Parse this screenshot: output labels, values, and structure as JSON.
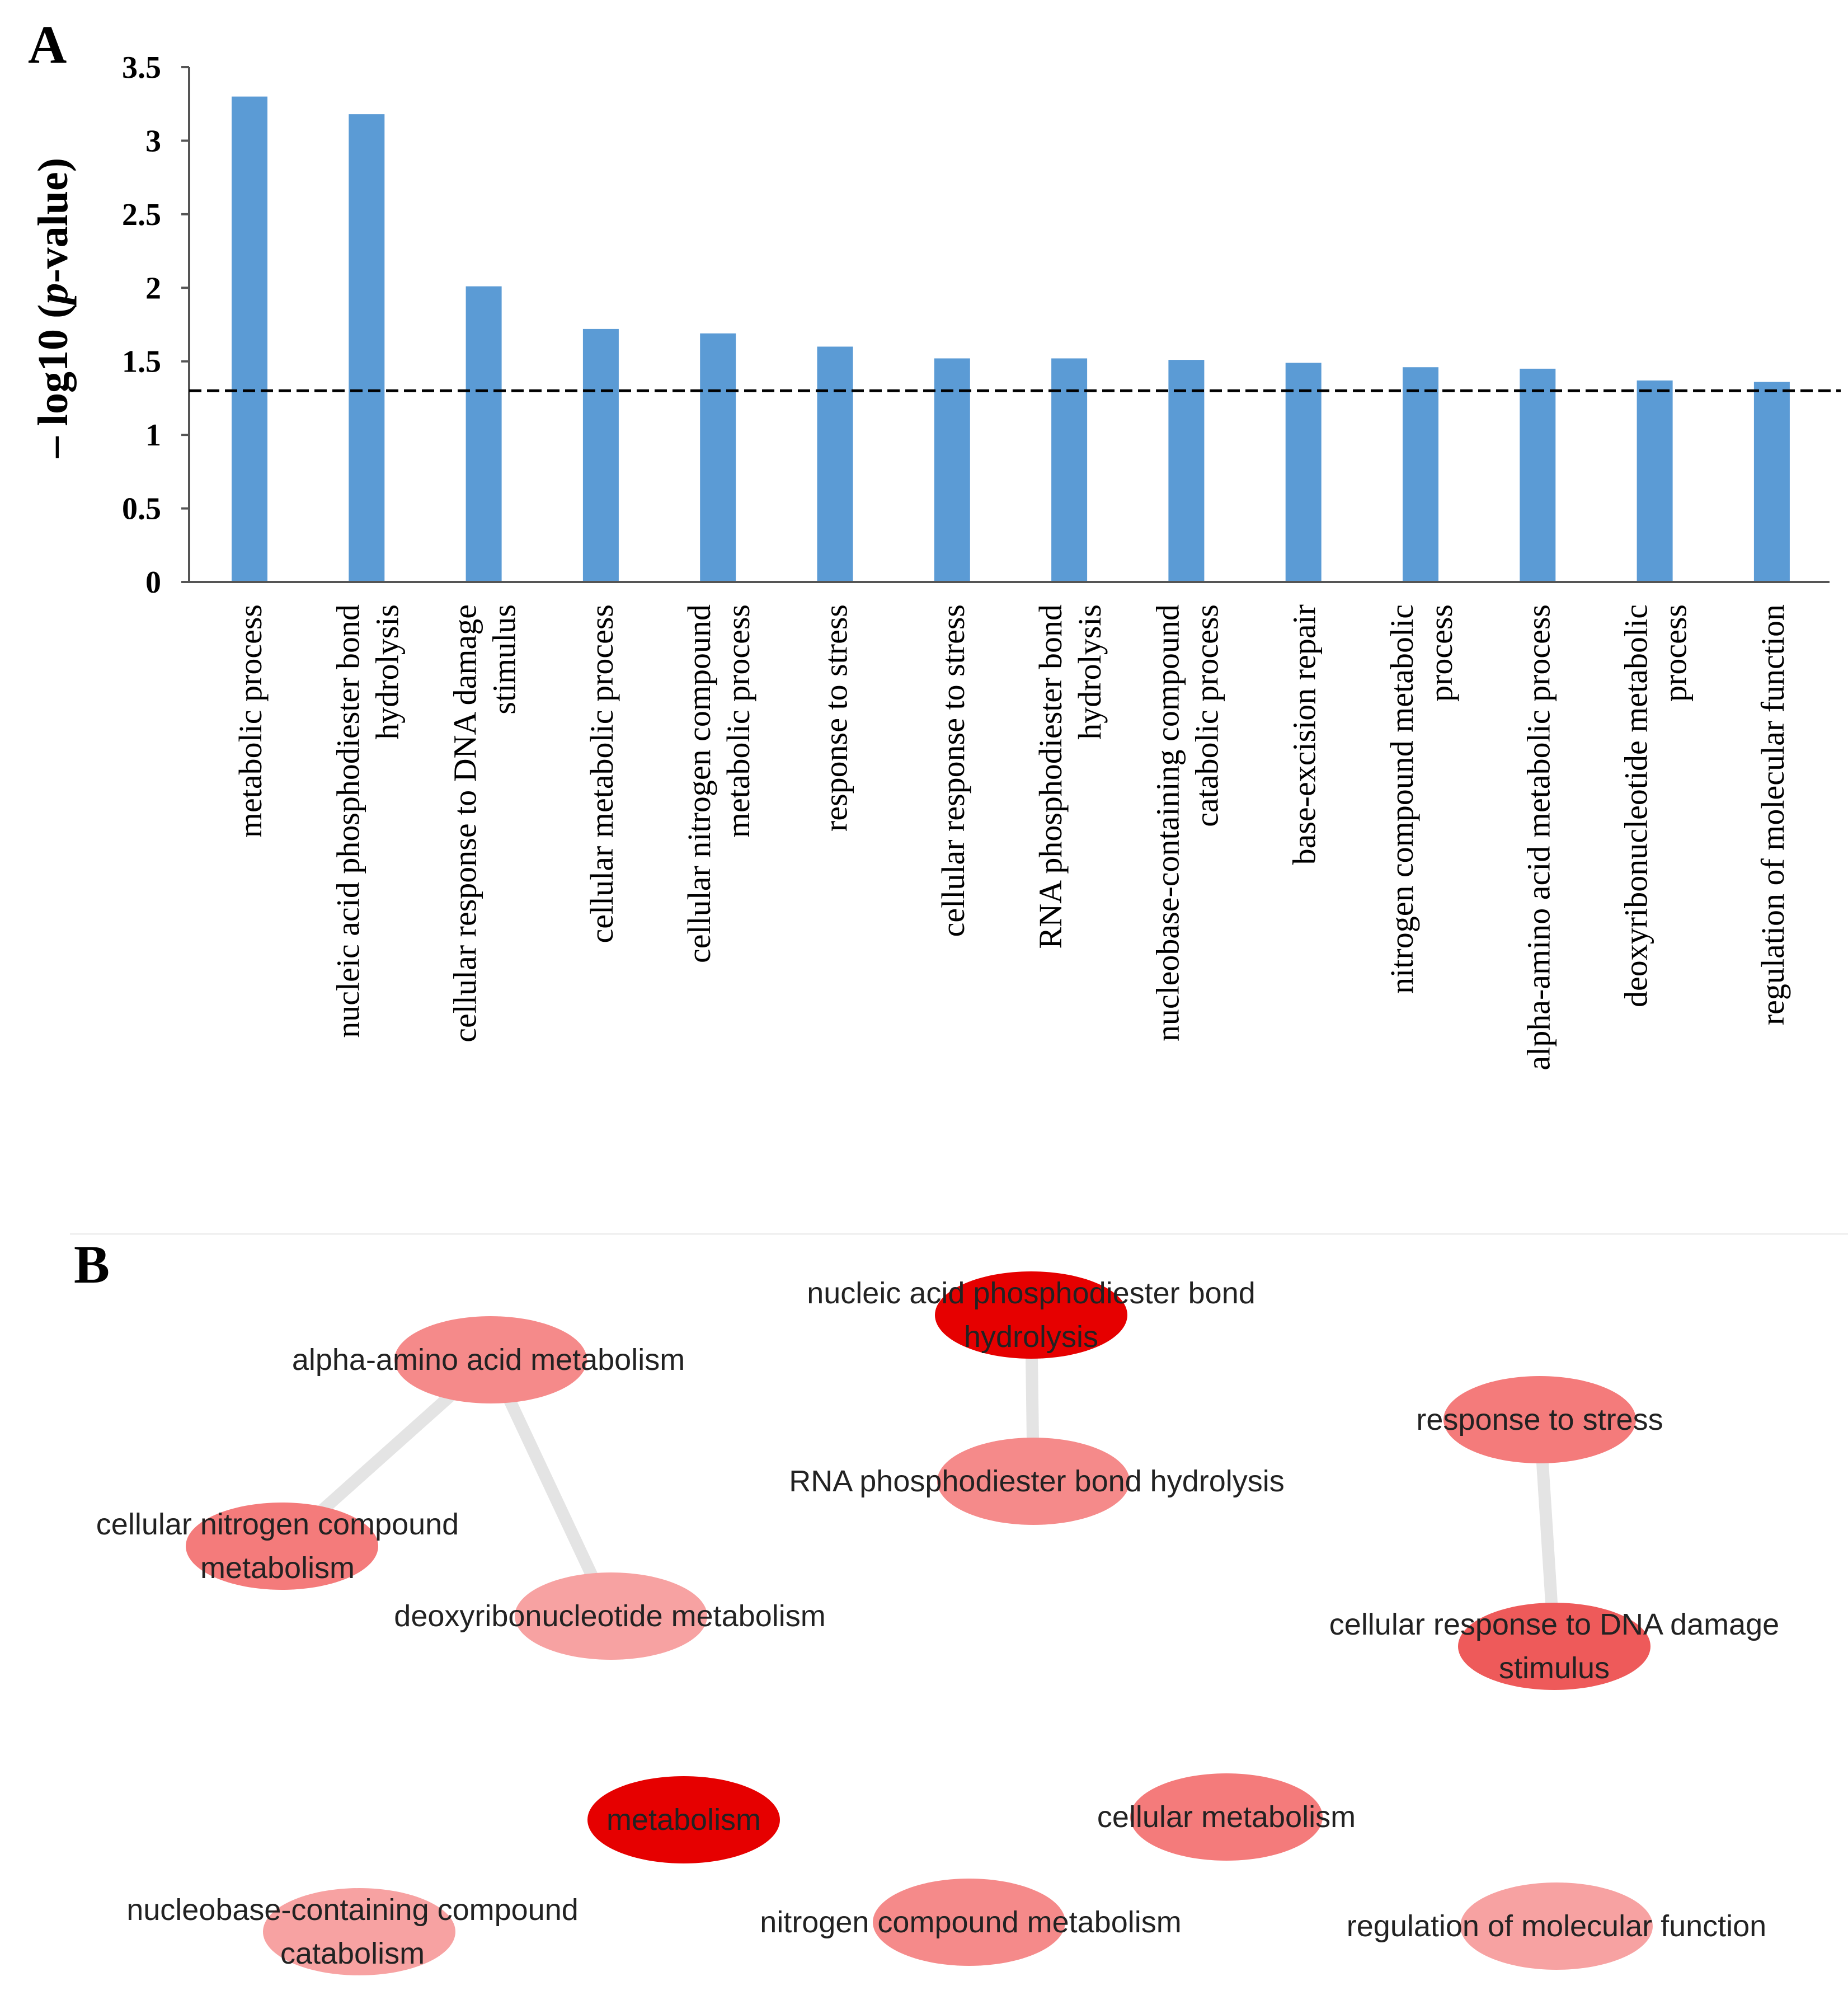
{
  "figure": {
    "panel_a_label": "A",
    "panel_b_label": "B"
  },
  "chart_data": [
    {
      "type": "bar",
      "panel": "A",
      "ylabel_prefix": "– log10 (",
      "ylabel_italic": "p",
      "ylabel_suffix": "-value)",
      "ylim": [
        0,
        3.5
      ],
      "yticks": [
        "0",
        "0.5",
        "1",
        "1.5",
        "2",
        "2.5",
        "3",
        "3.5"
      ],
      "bar_color": "#5b9bd5",
      "threshold": 1.3,
      "threshold_style": "dashed",
      "categories": [
        [
          "metabolic process"
        ],
        [
          "nucleic acid phosphodiester bond",
          "hydrolysis"
        ],
        [
          "cellular response to DNA damage",
          "stimulus"
        ],
        [
          "cellular metabolic process"
        ],
        [
          "cellular nitrogen compound",
          "metabolic process"
        ],
        [
          "response to stress"
        ],
        [
          "cellular response to stress"
        ],
        [
          "RNA phosphodiester bond",
          "hydrolysis"
        ],
        [
          "nucleobase-containing compound",
          "catabolic process"
        ],
        [
          "base-excision repair"
        ],
        [
          "nitrogen compound metabolic",
          "process"
        ],
        [
          "alpha-amino acid metabolic process"
        ],
        [
          "deoxyribonucleotide metabolic",
          "process"
        ],
        [
          "regulation of molecular function"
        ]
      ],
      "values": [
        3.3,
        3.18,
        2.01,
        1.72,
        1.69,
        1.6,
        1.52,
        1.52,
        1.51,
        1.49,
        1.46,
        1.45,
        1.37,
        1.36
      ]
    },
    {
      "type": "network",
      "panel": "B",
      "nodes": [
        {
          "id": "nucleic",
          "lines": [
            "nucleic acid phosphodiester bond",
            "hydrolysis"
          ],
          "color": "#e60000"
        },
        {
          "id": "alpha",
          "lines": [
            "alpha-amino acid metabolism"
          ],
          "color": "#f58a8a"
        },
        {
          "id": "rna",
          "lines": [
            "RNA phosphodiester bond hydrolysis"
          ],
          "color": "#f58a8a"
        },
        {
          "id": "stress",
          "lines": [
            "response to stress"
          ],
          "color": "#f47b7b"
        },
        {
          "id": "cnitro",
          "lines": [
            "cellular nitrogen compound",
            "metabolism"
          ],
          "color": "#f47b7b"
        },
        {
          "id": "deoxy",
          "lines": [
            "deoxyribonucleotide metabolism"
          ],
          "color": "#f7a2a2"
        },
        {
          "id": "dna",
          "lines": [
            "cellular response to DNA damage",
            "stimulus"
          ],
          "color": "#ee5a5a"
        },
        {
          "id": "metab",
          "lines": [
            "metabolism"
          ],
          "color": "#e60000"
        },
        {
          "id": "cellmet",
          "lines": [
            "cellular metabolism"
          ],
          "color": "#f47b7b"
        },
        {
          "id": "nucleobase",
          "lines": [
            "nucleobase-containing compound",
            "catabolism"
          ],
          "color": "#f7a2a2"
        },
        {
          "id": "nitro",
          "lines": [
            "nitrogen compound metabolism"
          ],
          "color": "#f58a8a"
        },
        {
          "id": "regmol",
          "lines": [
            "regulation of molecular function"
          ],
          "color": "#f7a2a2"
        }
      ],
      "edges": [
        [
          "nucleic",
          "rna"
        ],
        [
          "alpha",
          "cnitro"
        ],
        [
          "alpha",
          "deoxy"
        ],
        [
          "stress",
          "dna"
        ]
      ],
      "edge_color": "#e4e4e4"
    }
  ]
}
